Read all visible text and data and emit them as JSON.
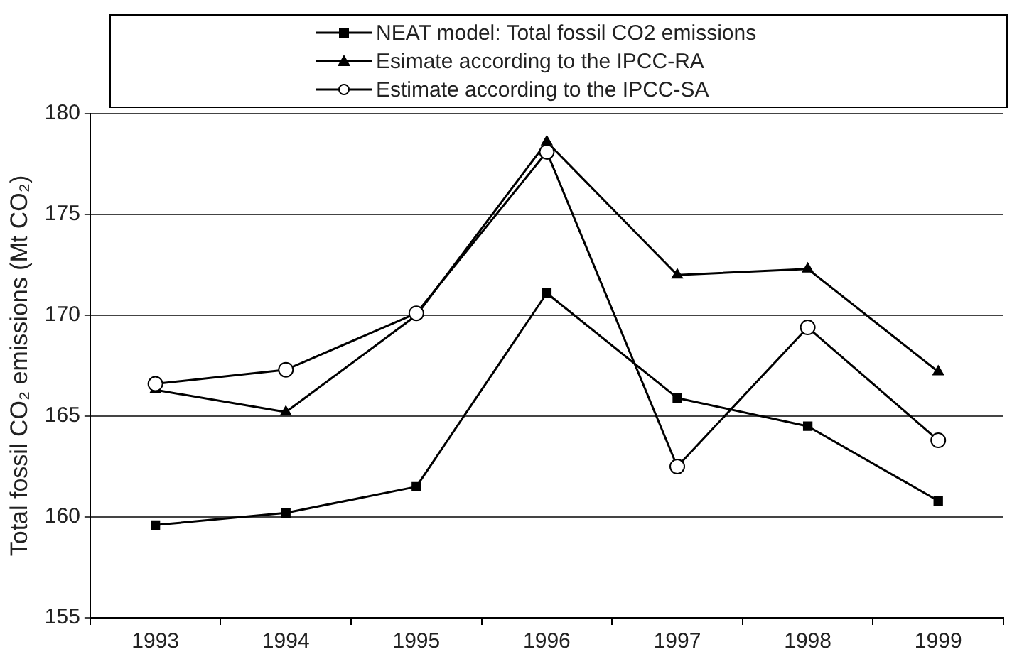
{
  "chart_data": {
    "type": "line",
    "ylabel": "Total fossil CO₂ emissions (Mt CO₂)",
    "categories": [
      "1993",
      "1994",
      "1995",
      "1996",
      "1997",
      "1998",
      "1999"
    ],
    "series": [
      {
        "name": "NEAT model: Total fossil CO2 emissions",
        "color": "#000000",
        "marker": "square",
        "values": [
          159.6,
          160.2,
          161.5,
          171.1,
          165.9,
          164.5,
          160.8
        ]
      },
      {
        "name": "Esimate according to the IPCC-RA",
        "color": "#000000",
        "marker": "triangle",
        "values": [
          166.3,
          165.2,
          170.0,
          178.6,
          172.0,
          172.3,
          167.2
        ]
      },
      {
        "name": "Estimate according to the IPCC-SA",
        "color": "#000000",
        "marker": "circle",
        "values": [
          166.6,
          167.3,
          170.1,
          178.1,
          162.5,
          169.4,
          163.8
        ]
      }
    ],
    "ylim": [
      155,
      180
    ],
    "yticks": [
      155,
      160,
      165,
      170,
      175,
      180
    ],
    "grid": "y",
    "legend": "top"
  }
}
